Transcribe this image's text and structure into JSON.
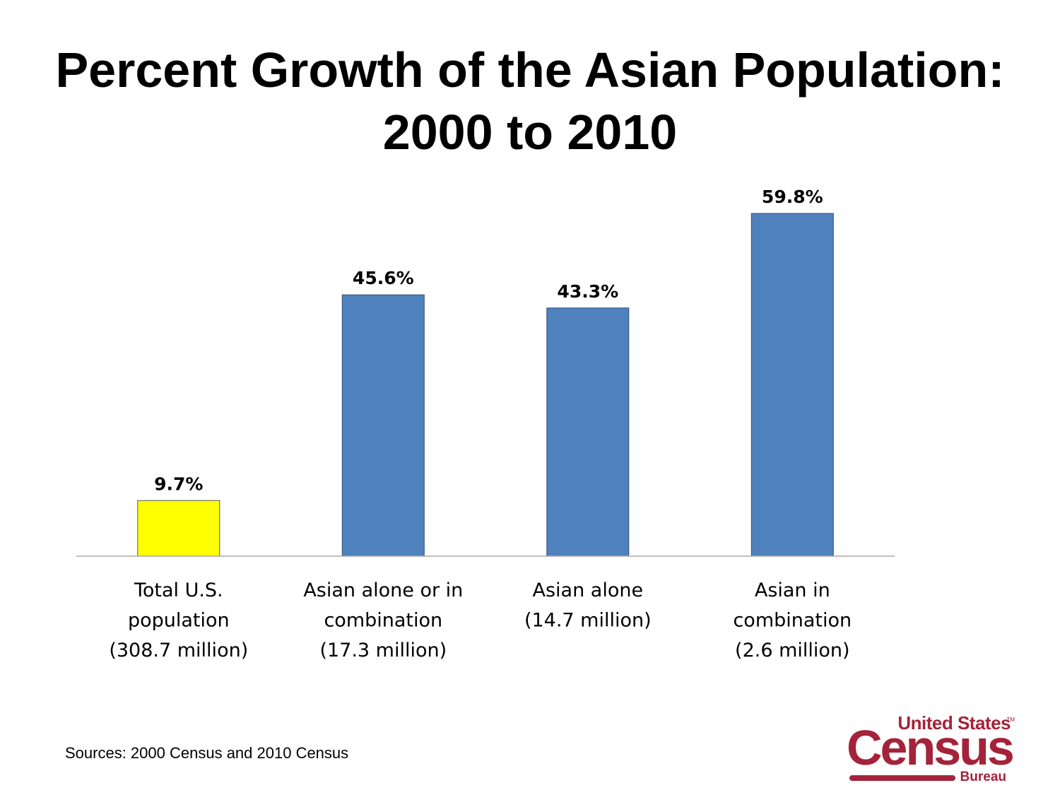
{
  "colors": {
    "highlight_bar": "#ffff00",
    "bar": "#4f81bd",
    "bar_stroke": "#2f4f7a",
    "axis": "#aaaaaa",
    "brand": "#a4233a"
  },
  "chart_data": {
    "type": "bar",
    "title": "Percent Growth of the Asian Population: 2000 to 2010",
    "title_lines": [
      "Percent Growth of the Asian Population:",
      "2000 to 2010"
    ],
    "xlabel": "",
    "ylabel": "",
    "ylim": [
      0,
      65
    ],
    "grid": false,
    "categories": [
      [
        "Total U.S.",
        "population",
        "(308.7 million)"
      ],
      [
        "Asian alone or in",
        "combination",
        "(17.3 million)"
      ],
      [
        "Asian alone",
        "(14.7 million)"
      ],
      [
        "Asian in",
        "combination",
        "(2.6 million)"
      ]
    ],
    "values": [
      9.7,
      45.6,
      43.3,
      59.8
    ],
    "data_labels": [
      "9.7%",
      "45.6%",
      "43.3%",
      "59.8%"
    ],
    "bar_colors": [
      "highlight_bar",
      "bar",
      "bar",
      "bar"
    ]
  },
  "footer": {
    "source": "Sources: 2000 Census and 2010 Census"
  },
  "logo": {
    "line1": "United States",
    "tm": "TM",
    "main": "Census",
    "line3": "Bureau"
  }
}
